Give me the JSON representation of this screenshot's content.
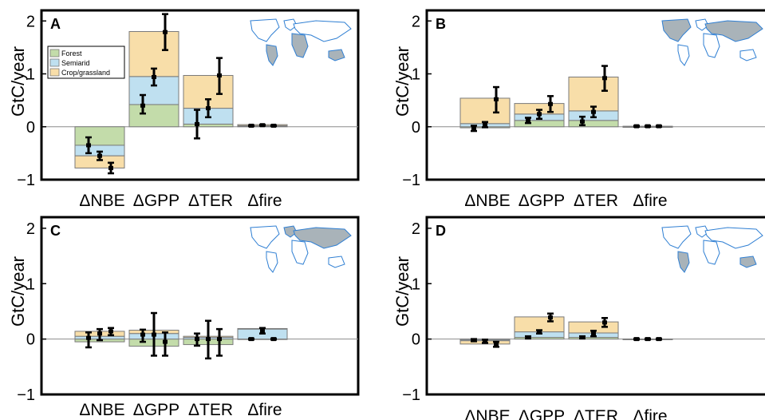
{
  "figure": {
    "ylabel": "GtC/year",
    "yticks": [
      "2",
      "1",
      "0",
      "−1"
    ],
    "categories": [
      "ΔNBE",
      "ΔGPP",
      "ΔTER",
      "Δfire"
    ],
    "legend": [
      "Forest",
      "Semiarid",
      "Crop/grassland"
    ]
  },
  "colors": {
    "forest": "#c3dcaa",
    "semiarid": "#bfe0f0",
    "crop": "#f8dea9",
    "bar_edge": "#7a7a7a",
    "error": "#000000",
    "map_land": "#a9b3b9",
    "map_coast": "#2f7fd3"
  },
  "chart_data": [
    {
      "panel": "A",
      "type": "bar",
      "stacked": true,
      "categories": [
        "ΔNBE",
        "ΔGPP",
        "ΔTER",
        "Δfire"
      ],
      "ylim": [
        -1,
        2.2
      ],
      "ylabel": "GtC/year",
      "legend_position": "top-left",
      "series": [
        {
          "name": "Forest",
          "values": [
            -0.35,
            0.42,
            0.05,
            0.01
          ]
        },
        {
          "name": "Semiarid",
          "values": [
            -0.2,
            0.53,
            0.3,
            0.01
          ]
        },
        {
          "name": "Crop/grassland",
          "values": [
            -0.23,
            0.85,
            0.62,
            0.02
          ]
        }
      ],
      "errorbars": [
        [
          {
            "y": -0.35,
            "lo": -0.5,
            "hi": -0.2
          },
          {
            "y": -0.55,
            "lo": -0.63,
            "hi": -0.47
          },
          {
            "y": -0.78,
            "lo": -0.88,
            "hi": -0.68
          }
        ],
        [
          {
            "y": 0.4,
            "lo": 0.25,
            "hi": 0.6
          },
          {
            "y": 0.94,
            "lo": 0.78,
            "hi": 1.1
          },
          {
            "y": 1.79,
            "lo": 1.45,
            "hi": 2.13
          }
        ],
        [
          {
            "y": 0.05,
            "lo": -0.22,
            "hi": 0.32
          },
          {
            "y": 0.35,
            "lo": 0.18,
            "hi": 0.52
          },
          {
            "y": 0.97,
            "lo": 0.62,
            "hi": 1.3
          }
        ],
        [
          {
            "y": 0.02,
            "lo": 0.01,
            "hi": 0.03
          },
          {
            "y": 0.03,
            "lo": 0.02,
            "hi": 0.04
          },
          {
            "y": 0.02,
            "lo": 0.01,
            "hi": 0.03
          }
        ]
      ],
      "map_region": "tropics"
    },
    {
      "panel": "B",
      "type": "bar",
      "stacked": true,
      "categories": [
        "ΔNBE",
        "ΔGPP",
        "ΔTER",
        "Δfire"
      ],
      "ylim": [
        -1,
        2.2
      ],
      "ylabel": "GtC/year",
      "series": [
        {
          "name": "Forest",
          "values": [
            -0.02,
            0.12,
            0.12,
            0.0
          ]
        },
        {
          "name": "Semiarid",
          "values": [
            0.06,
            0.12,
            0.18,
            0.0
          ]
        },
        {
          "name": "Crop/grassland",
          "values": [
            0.48,
            0.2,
            0.64,
            0.01
          ]
        }
      ],
      "errorbars": [
        [
          {
            "y": -0.03,
            "lo": -0.08,
            "hi": 0.02
          },
          {
            "y": 0.04,
            "lo": -0.01,
            "hi": 0.09
          },
          {
            "y": 0.52,
            "lo": 0.27,
            "hi": 0.75
          }
        ],
        [
          {
            "y": 0.12,
            "lo": 0.07,
            "hi": 0.17
          },
          {
            "y": 0.24,
            "lo": 0.15,
            "hi": 0.32
          },
          {
            "y": 0.43,
            "lo": 0.28,
            "hi": 0.58
          }
        ],
        [
          {
            "y": 0.1,
            "lo": 0.03,
            "hi": 0.19
          },
          {
            "y": 0.28,
            "lo": 0.18,
            "hi": 0.38
          },
          {
            "y": 0.92,
            "lo": 0.68,
            "hi": 1.15
          }
        ],
        [
          {
            "y": 0.01,
            "lo": 0.0,
            "hi": 0.02
          },
          {
            "y": 0.01,
            "lo": 0.0,
            "hi": 0.02
          },
          {
            "y": 0.01,
            "lo": 0.0,
            "hi": 0.02
          }
        ]
      ],
      "map_region": "northern mid-latitudes"
    },
    {
      "panel": "C",
      "type": "bar",
      "stacked": true,
      "categories": [
        "ΔNBE",
        "ΔGPP",
        "ΔTER",
        "Δfire"
      ],
      "ylim": [
        -1,
        2.2
      ],
      "ylabel": "GtC/year",
      "series": [
        {
          "name": "Forest",
          "values": [
            -0.05,
            -0.13,
            -0.1,
            0.0
          ]
        },
        {
          "name": "Semiarid",
          "values": [
            0.05,
            0.1,
            0.03,
            0.18
          ]
        },
        {
          "name": "Crop/grassland",
          "values": [
            0.09,
            0.06,
            0.02,
            0.01
          ]
        }
      ],
      "errorbars": [
        [
          {
            "y": 0.02,
            "lo": -0.15,
            "hi": 0.12
          },
          {
            "y": 0.1,
            "lo": -0.02,
            "hi": 0.18
          },
          {
            "y": 0.14,
            "lo": 0.07,
            "hi": 0.2
          }
        ],
        [
          {
            "y": 0.08,
            "lo": -0.05,
            "hi": 0.17
          },
          {
            "y": 0.08,
            "lo": -0.3,
            "hi": 0.47
          },
          {
            "y": -0.05,
            "lo": -0.3,
            "hi": 0.12
          }
        ],
        [
          {
            "y": 0.0,
            "lo": -0.12,
            "hi": 0.1
          },
          {
            "y": 0.0,
            "lo": -0.35,
            "hi": 0.33
          },
          {
            "y": 0.0,
            "lo": -0.3,
            "hi": 0.18
          }
        ],
        [
          {
            "y": 0.0,
            "lo": -0.01,
            "hi": 0.01
          },
          {
            "y": 0.15,
            "lo": 0.1,
            "hi": 0.2
          },
          {
            "y": 0.0,
            "lo": -0.01,
            "hi": 0.01
          }
        ]
      ],
      "map_region": "boreal"
    },
    {
      "panel": "D",
      "type": "bar",
      "stacked": true,
      "categories": [
        "ΔNBE",
        "ΔGPP",
        "ΔTER",
        "Δfire"
      ],
      "ylim": [
        -1,
        2.2
      ],
      "ylabel": "GtC/year",
      "series": [
        {
          "name": "Forest",
          "values": [
            -0.01,
            0.03,
            0.03,
            0.0
          ]
        },
        {
          "name": "Semiarid",
          "values": [
            -0.02,
            0.1,
            0.08,
            0.0
          ]
        },
        {
          "name": "Crop/grassland",
          "values": [
            -0.06,
            0.27,
            0.2,
            0.0
          ]
        }
      ],
      "errorbars": [
        [
          {
            "y": -0.02,
            "lo": -0.04,
            "hi": 0.0
          },
          {
            "y": -0.04,
            "lo": -0.07,
            "hi": -0.01
          },
          {
            "y": -0.09,
            "lo": -0.14,
            "hi": -0.05
          }
        ],
        [
          {
            "y": 0.03,
            "lo": 0.01,
            "hi": 0.05
          },
          {
            "y": 0.13,
            "lo": 0.1,
            "hi": 0.16
          },
          {
            "y": 0.39,
            "lo": 0.32,
            "hi": 0.46
          }
        ],
        [
          {
            "y": 0.03,
            "lo": 0.01,
            "hi": 0.05
          },
          {
            "y": 0.1,
            "lo": 0.05,
            "hi": 0.15
          },
          {
            "y": 0.3,
            "lo": 0.22,
            "hi": 0.38
          }
        ],
        [
          {
            "y": 0.0,
            "lo": -0.01,
            "hi": 0.01
          },
          {
            "y": 0.0,
            "lo": -0.01,
            "hi": 0.01
          },
          {
            "y": 0.0,
            "lo": -0.01,
            "hi": 0.01
          }
        ]
      ],
      "map_region": "southern hemisphere"
    }
  ]
}
